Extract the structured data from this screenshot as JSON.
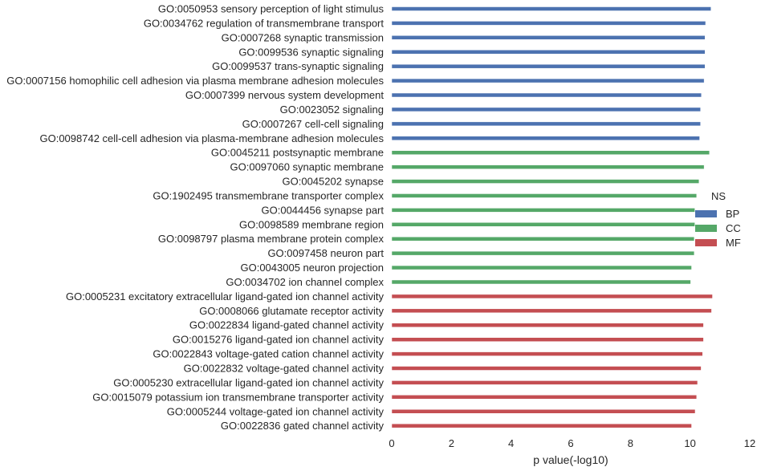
{
  "chart_data": {
    "type": "bar",
    "orientation": "horizontal",
    "xlabel": "p value(-log10)",
    "xlim": [
      0,
      12
    ],
    "xticks": [
      0,
      2,
      4,
      6,
      8,
      10,
      12
    ],
    "grid": false,
    "legend": {
      "title": "NS",
      "placement": "right",
      "entries": [
        {
          "name": "BP",
          "color": "#4c72b0"
        },
        {
          "name": "CC",
          "color": "#55a868"
        },
        {
          "name": "MF",
          "color": "#c44e52"
        }
      ]
    },
    "bars": [
      {
        "label": "GO:0050953 sensory perception of light stimulus",
        "value": 10.7,
        "group": "BP"
      },
      {
        "label": "GO:0034762 regulation of transmembrane transport",
        "value": 10.52,
        "group": "BP"
      },
      {
        "label": "GO:0007268 synaptic transmission",
        "value": 10.5,
        "group": "BP"
      },
      {
        "label": "GO:0099536 synaptic signaling",
        "value": 10.5,
        "group": "BP"
      },
      {
        "label": "GO:0099537 trans-synaptic signaling",
        "value": 10.5,
        "group": "BP"
      },
      {
        "label": "GO:0007156 homophilic cell adhesion via plasma membrane adhesion molecules",
        "value": 10.47,
        "group": "BP"
      },
      {
        "label": "GO:0007399 nervous system development",
        "value": 10.38,
        "group": "BP"
      },
      {
        "label": "GO:0023052 signaling",
        "value": 10.35,
        "group": "BP"
      },
      {
        "label": "GO:0007267 cell-cell signaling",
        "value": 10.35,
        "group": "BP"
      },
      {
        "label": "GO:0098742 cell-cell adhesion via plasma-membrane adhesion molecules",
        "value": 10.32,
        "group": "BP"
      },
      {
        "label": "GO:0045211 postsynaptic membrane",
        "value": 10.65,
        "group": "CC"
      },
      {
        "label": "GO:0097060 synaptic membrane",
        "value": 10.47,
        "group": "CC"
      },
      {
        "label": "GO:0045202 synapse",
        "value": 10.3,
        "group": "CC"
      },
      {
        "label": "GO:1902495 transmembrane transporter complex",
        "value": 10.22,
        "group": "CC"
      },
      {
        "label": "GO:0044456 synapse part",
        "value": 10.16,
        "group": "CC"
      },
      {
        "label": "GO:0098589 membrane region",
        "value": 10.16,
        "group": "CC"
      },
      {
        "label": "GO:0098797 plasma membrane protein complex",
        "value": 10.14,
        "group": "CC"
      },
      {
        "label": "GO:0097458 neuron part",
        "value": 10.14,
        "group": "CC"
      },
      {
        "label": "GO:0043005 neuron projection",
        "value": 10.05,
        "group": "CC"
      },
      {
        "label": "GO:0034702 ion channel complex",
        "value": 10.02,
        "group": "CC"
      },
      {
        "label": "GO:0005231 excitatory extracellular ligand-gated ion channel activity",
        "value": 10.75,
        "group": "MF"
      },
      {
        "label": "GO:0008066 glutamate receptor activity",
        "value": 10.72,
        "group": "MF"
      },
      {
        "label": "GO:0022834 ligand-gated channel activity",
        "value": 10.45,
        "group": "MF"
      },
      {
        "label": "GO:0015276 ligand-gated ion channel activity",
        "value": 10.45,
        "group": "MF"
      },
      {
        "label": "GO:0022843 voltage-gated cation channel activity",
        "value": 10.42,
        "group": "MF"
      },
      {
        "label": "GO:0022832 voltage-gated channel activity",
        "value": 10.37,
        "group": "MF"
      },
      {
        "label": "GO:0005230 extracellular ligand-gated ion channel activity",
        "value": 10.25,
        "group": "MF"
      },
      {
        "label": "GO:0015079 potassium ion transmembrane transporter activity",
        "value": 10.22,
        "group": "MF"
      },
      {
        "label": "GO:0005244 voltage-gated ion channel activity",
        "value": 10.17,
        "group": "MF"
      },
      {
        "label": "GO:0022836 gated channel activity",
        "value": 10.05,
        "group": "MF"
      }
    ]
  }
}
